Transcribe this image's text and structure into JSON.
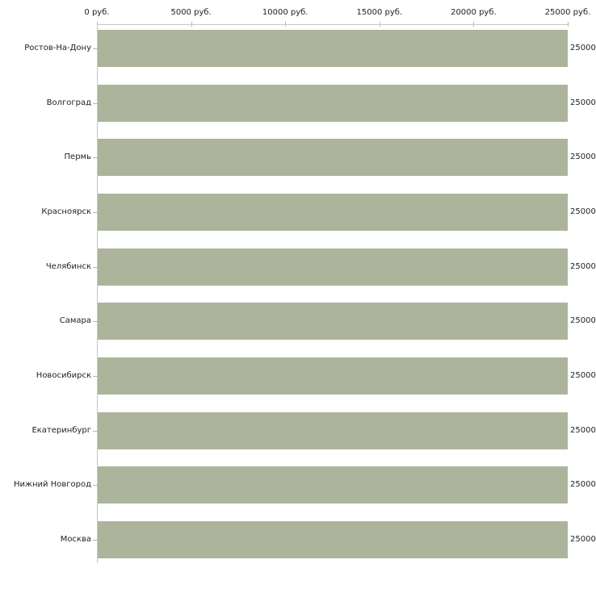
{
  "chart_data": {
    "type": "bar",
    "orientation": "horizontal",
    "title": "",
    "xlabel": "",
    "ylabel": "",
    "unit": "руб.",
    "categories": [
      "Ростов-На-Дону",
      "Волгоград",
      "Пермь",
      "Красноярск",
      "Челябинск",
      "Самара",
      "Новосибирск",
      "Екатеринбург",
      "Нижний Новгород",
      "Москва"
    ],
    "values": [
      25000,
      25000,
      25000,
      25000,
      25000,
      25000,
      25000,
      25000,
      25000,
      25000
    ],
    "bar_value_labels": [
      "25000",
      "25000",
      "25000",
      "25000",
      "25000",
      "25000",
      "25000",
      "25000",
      "25000",
      "25000"
    ],
    "x_ticks": [
      {
        "value": 0,
        "label": "0 руб."
      },
      {
        "value": 5000,
        "label": "5000 руб."
      },
      {
        "value": 10000,
        "label": "10000 руб."
      },
      {
        "value": 15000,
        "label": "15000 руб."
      },
      {
        "value": 20000,
        "label": "20000 руб."
      },
      {
        "value": 25000,
        "label": "25000 руб."
      }
    ],
    "xlim": [
      0,
      25000
    ],
    "grid": false,
    "legend_position": null,
    "axis_position": "top",
    "colors": {
      "bar": "#acb59b",
      "axis_line": "#c7c7c3",
      "tick": "#b5bc9c",
      "text": "#1f1f1f",
      "background": "#ffffff"
    }
  }
}
